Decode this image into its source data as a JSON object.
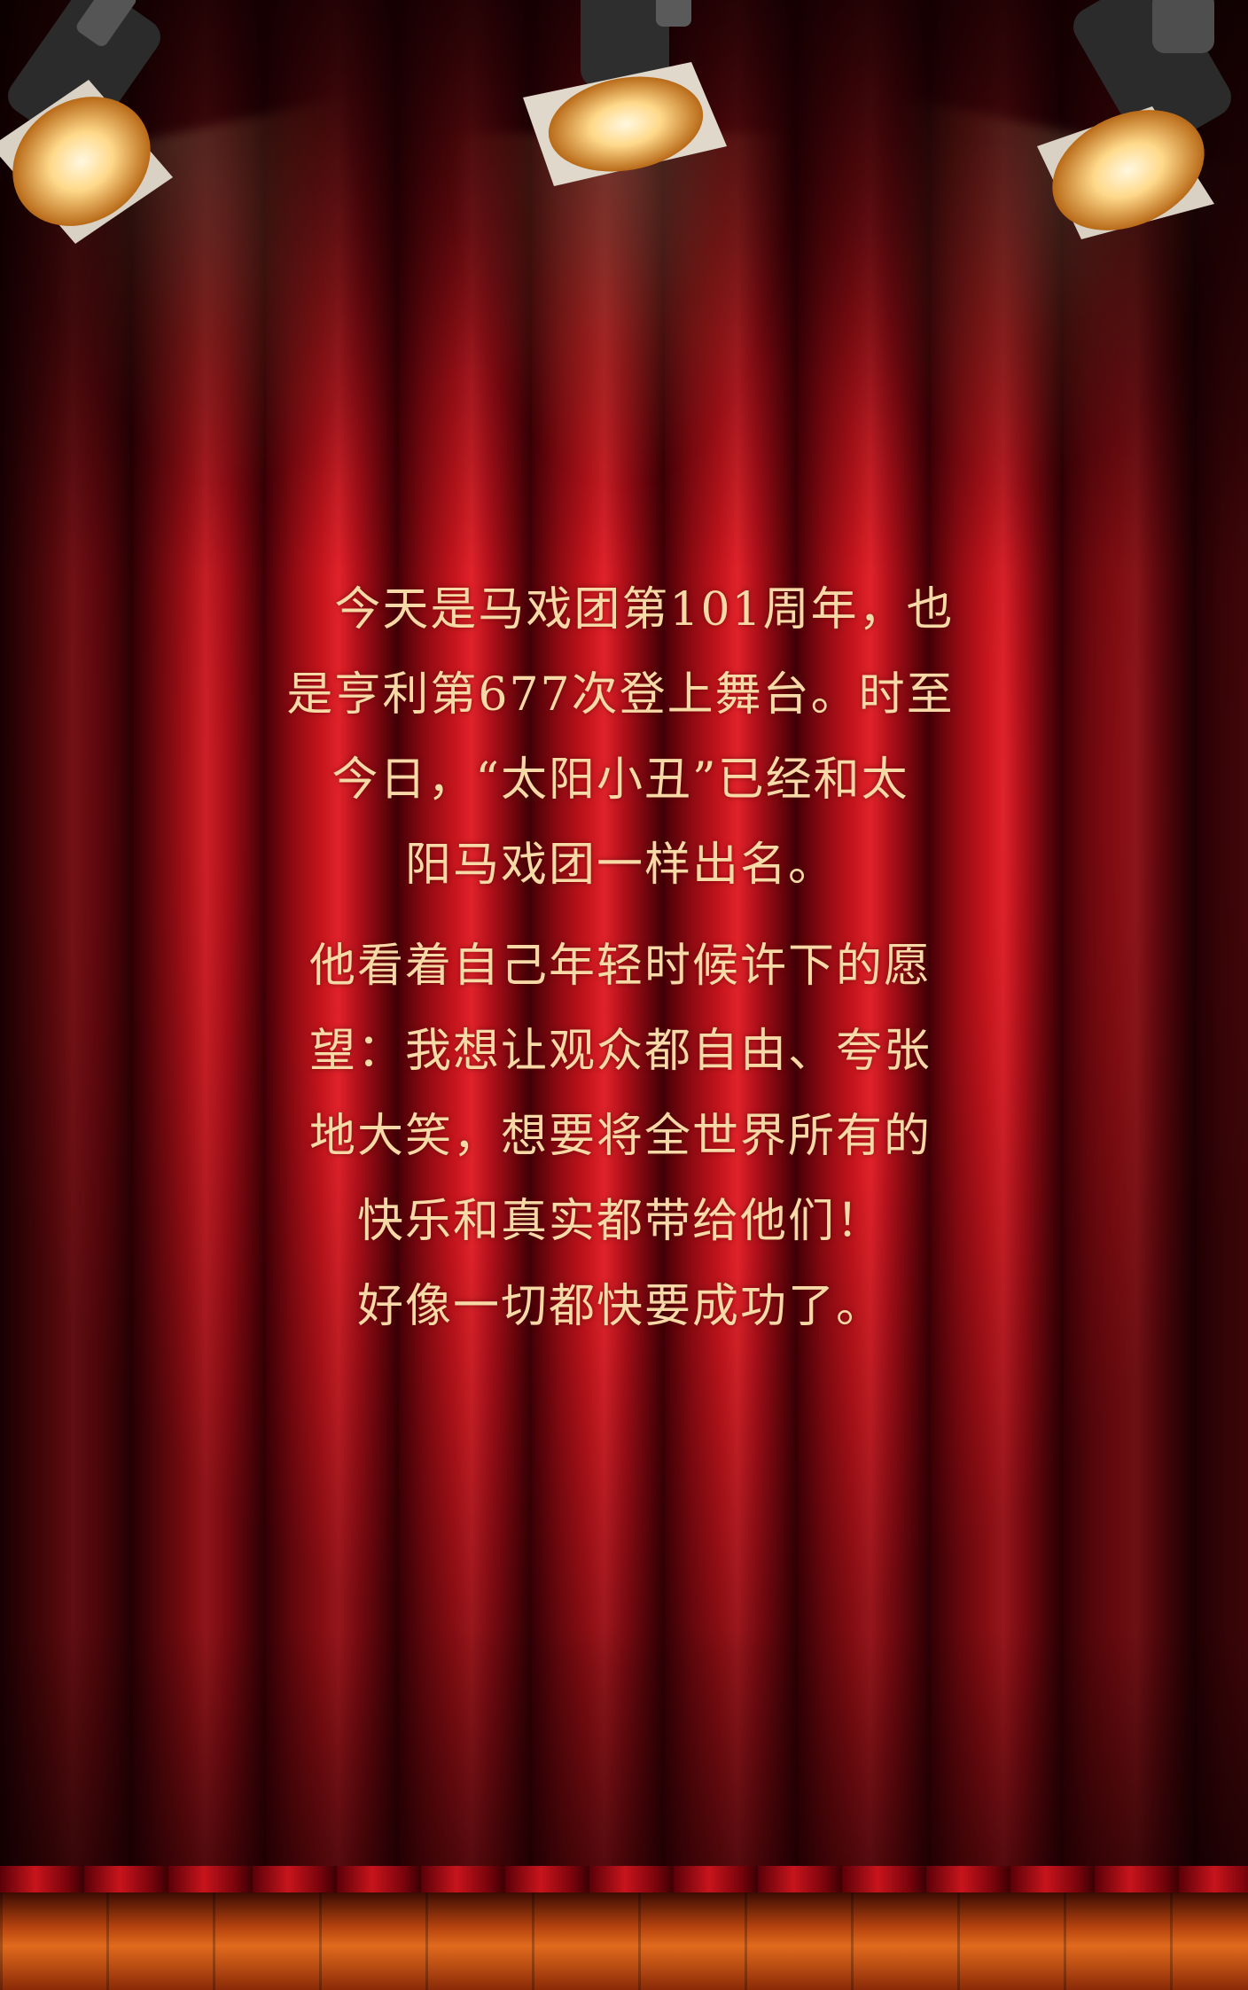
{
  "story": {
    "paragraph1": "　今天是马戏团第101周年，也\n是亨利第677次登上舞台。时至\n今日，“太阳小丑”已经和太\n阳马戏团一样出名。",
    "paragraph2": "他看着自己年轻时候许下的愿\n望：我想让观众都自由、夸张\n地大笑，想要将全世界所有的\n快乐和真实都带给他们！\n好像一切都快要成功了。"
  },
  "colors": {
    "text": "#f6d9a6",
    "curtain": "#c5141c",
    "floor": "#e06a1c"
  }
}
